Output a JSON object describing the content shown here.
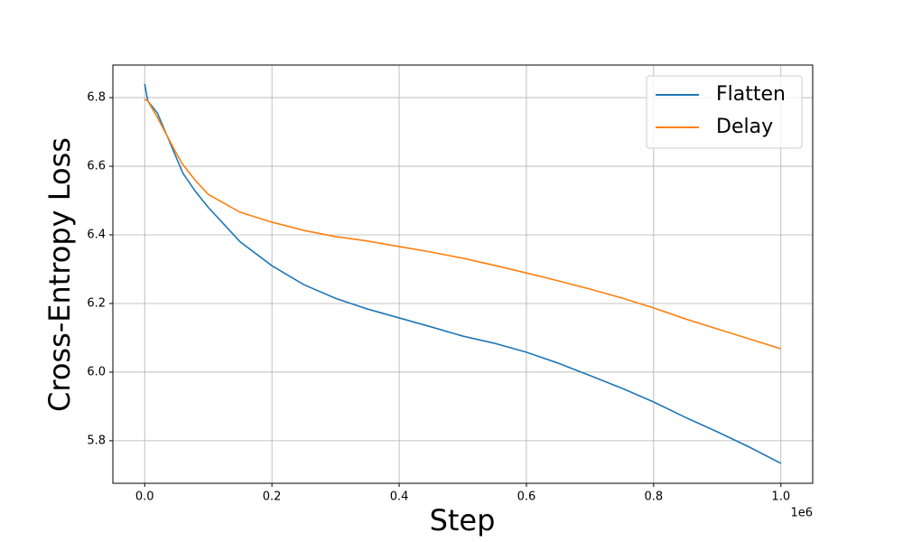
{
  "chart_data": {
    "type": "line",
    "x_label": "Step",
    "y_label": "Cross-Entropy Loss",
    "x_offset_label": "1e6",
    "x": [
      0,
      5000,
      20000,
      50000,
      60000,
      80000,
      100000,
      150000,
      200000,
      250000,
      300000,
      350000,
      400000,
      450000,
      500000,
      550000,
      600000,
      650000,
      700000,
      750000,
      800000,
      850000,
      900000,
      950000,
      1000000
    ],
    "series": [
      {
        "name": "Flatten",
        "color": "#1f77b4",
        "values": [
          6.84,
          6.79,
          6.755,
          6.624,
          6.58,
          6.526,
          6.48,
          6.38,
          6.31,
          6.255,
          6.215,
          6.184,
          6.158,
          6.132,
          6.105,
          6.084,
          6.058,
          6.026,
          5.99,
          5.953,
          5.913,
          5.868,
          5.826,
          5.782,
          5.734
        ]
      },
      {
        "name": "Delay",
        "color": "#ff7f0e",
        "values": [
          6.795,
          6.79,
          6.742,
          6.637,
          6.605,
          6.558,
          6.518,
          6.466,
          6.437,
          6.413,
          6.395,
          6.382,
          6.366,
          6.35,
          6.332,
          6.311,
          6.289,
          6.266,
          6.242,
          6.216,
          6.187,
          6.155,
          6.126,
          6.097,
          6.068
        ]
      }
    ],
    "xlim": [
      -50000,
      1050000
    ],
    "xticks": [
      {
        "value": 0,
        "label": "0.0"
      },
      {
        "value": 200000,
        "label": "0.2"
      },
      {
        "value": 400000,
        "label": "0.4"
      },
      {
        "value": 600000,
        "label": "0.6"
      },
      {
        "value": 800000,
        "label": "0.8"
      },
      {
        "value": 1000000,
        "label": "1.0"
      }
    ],
    "ylim": [
      5.676,
      6.895
    ],
    "yticks": [
      5.8,
      {
        "value": 6,
        "label": "6.0"
      },
      6.2,
      6.4,
      6.6,
      6.8
    ],
    "grid": true,
    "legend": "upper-right"
  }
}
